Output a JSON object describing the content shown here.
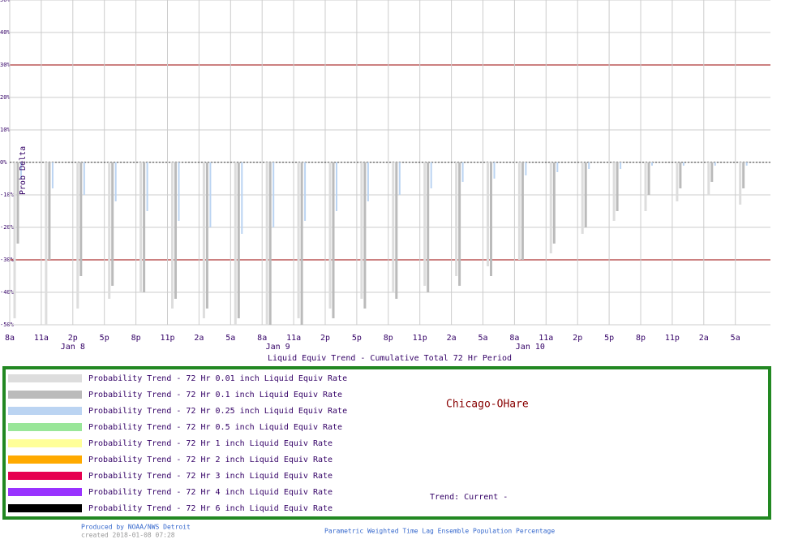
{
  "chart_data": {
    "type": "bar",
    "title": "Liquid Equiv Trend - Cumulative Total 72 Hr Period",
    "y_label": "Prob Delta",
    "station": "Chicago-OHare",
    "trend_note": "Trend: Current -",
    "producer": "Produced by NOAA/NWS Detroit",
    "created": "created 2018-01-08 07:28",
    "footer": "Parametric Weighted Time Lag Ensemble Population Percentage",
    "day_labels": [
      "Jan 8",
      "Jan 9",
      "Jan 10"
    ],
    "categories": [
      "8a",
      "11a",
      "2p",
      "5p",
      "8p",
      "11p",
      "2a",
      "5a",
      "8a",
      "11a",
      "2p",
      "5p",
      "8p",
      "11p",
      "2a",
      "5a",
      "8a",
      "11a",
      "2p",
      "5p",
      "8p",
      "11p",
      "2a",
      "5a"
    ],
    "ylim": [
      -50,
      50
    ],
    "yticks": [
      {
        "value": -50,
        "label": "-50%"
      },
      {
        "value": -40,
        "label": "-40%"
      },
      {
        "value": -30,
        "label": "-30%"
      },
      {
        "value": -20,
        "label": "-20%"
      },
      {
        "value": -10,
        "label": "-10%"
      },
      {
        "value": 0,
        "label": "0%"
      },
      {
        "value": 10,
        "label": "10%"
      },
      {
        "value": 20,
        "label": "20%"
      },
      {
        "value": 30,
        "label": "30%"
      },
      {
        "value": 40,
        "label": "40%"
      },
      {
        "value": 50,
        "label": "50%"
      }
    ],
    "reference_lines": [
      30,
      -30
    ],
    "grid": true,
    "series": [
      {
        "name": "Probability Trend -  72 Hr 0.01 inch Liquid Equiv Rate",
        "color": "#dddddd",
        "values": [
          -48,
          -50,
          -45,
          -42,
          -40,
          -45,
          -48,
          -50,
          -50,
          -48,
          -45,
          -42,
          -40,
          -38,
          -35,
          -32,
          -30,
          -28,
          -22,
          -18,
          -15,
          -12,
          -10,
          -13
        ]
      },
      {
        "name": "Probability Trend -  72 Hr 0.1 inch Liquid Equiv Rate",
        "color": "#bbbbbb",
        "values": [
          -25,
          -30,
          -35,
          -38,
          -40,
          -42,
          -45,
          -48,
          -50,
          -50,
          -48,
          -45,
          -42,
          -40,
          -38,
          -35,
          -30,
          -25,
          -20,
          -15,
          -10,
          -8,
          -6,
          -8
        ]
      },
      {
        "name": "Probability Trend -  72 Hr 0.25 inch Liquid Equiv Rate",
        "color": "#bbd4f2",
        "values": [
          -5,
          -8,
          -10,
          -12,
          -15,
          -18,
          -20,
          -22,
          -20,
          -18,
          -15,
          -12,
          -10,
          -8,
          -6,
          -5,
          -4,
          -3,
          -2,
          -2,
          -1,
          -1,
          -1,
          -1
        ]
      },
      {
        "name": "Probability Trend -  72 Hr 0.5 inch Liquid Equiv Rate",
        "color": "#99e699",
        "values": [
          null,
          null,
          null,
          null,
          null,
          null,
          null,
          null,
          null,
          null,
          null,
          null,
          null,
          null,
          null,
          null,
          null,
          null,
          null,
          null,
          null,
          null,
          null,
          null
        ]
      },
      {
        "name": "Probability Trend -  72 Hr 1 inch Liquid Equiv Rate",
        "color": "#ffff99",
        "values": [
          null,
          null,
          null,
          null,
          null,
          null,
          null,
          null,
          null,
          null,
          null,
          null,
          null,
          null,
          null,
          null,
          null,
          null,
          null,
          null,
          null,
          null,
          null,
          null
        ]
      },
      {
        "name": "Probability Trend -  72 Hr 2 inch Liquid Equiv Rate",
        "color": "#ffaa00",
        "values": [
          null,
          null,
          null,
          null,
          null,
          null,
          null,
          null,
          null,
          null,
          null,
          null,
          null,
          null,
          null,
          null,
          null,
          null,
          null,
          null,
          null,
          null,
          null,
          null
        ]
      },
      {
        "name": "Probability Trend -  72 Hr 3 inch Liquid Equiv Rate",
        "color": "#e60050",
        "values": [
          null,
          null,
          null,
          null,
          null,
          null,
          null,
          null,
          null,
          null,
          null,
          null,
          null,
          null,
          null,
          null,
          null,
          null,
          null,
          null,
          null,
          null,
          null,
          null
        ]
      },
      {
        "name": "Probability Trend -  72 Hr 4 inch Liquid Equiv Rate",
        "color": "#9933ff",
        "values": [
          null,
          null,
          null,
          null,
          null,
          null,
          null,
          null,
          null,
          null,
          null,
          null,
          null,
          null,
          null,
          null,
          null,
          null,
          null,
          null,
          null,
          null,
          null,
          null
        ]
      },
      {
        "name": "Probability Trend -  72 Hr 6 inch Liquid Equiv Rate",
        "color": "#000000",
        "values": [
          null,
          null,
          null,
          null,
          null,
          null,
          null,
          null,
          null,
          null,
          null,
          null,
          null,
          null,
          null,
          null,
          null,
          null,
          null,
          null,
          null,
          null,
          null,
          null
        ]
      }
    ]
  }
}
